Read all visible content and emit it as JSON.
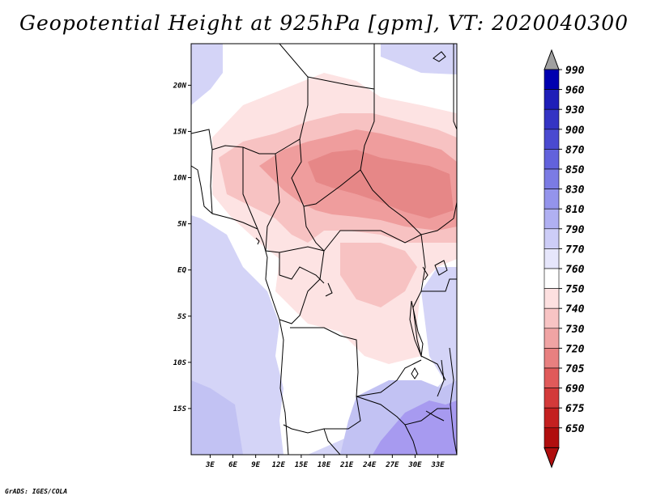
{
  "title": "Geopotential Height at 925hPa [gpm], VT: 2020040300",
  "credit": "GrADS: IGES/COLA",
  "map": {
    "lat_labels": [
      "20N",
      "15N",
      "10N",
      "5N",
      "EQ",
      "5S",
      "10S",
      "15S"
    ],
    "lat_values": [
      20,
      15,
      10,
      5,
      0,
      -5,
      -10,
      -15
    ],
    "lon_labels": [
      "3E",
      "6E",
      "9E",
      "12E",
      "15E",
      "18E",
      "21E",
      "24E",
      "27E",
      "30E",
      "33E"
    ],
    "lon_values": [
      3,
      6,
      9,
      12,
      15,
      18,
      21,
      24,
      27,
      30,
      33
    ],
    "lon_range": [
      0.5,
      35.5
    ],
    "lat_range": [
      -20,
      24.5
    ],
    "fill_colors": {
      "ocean": "#d4d4f7",
      "south_ocean": "#c2c2f3",
      "low_purple": "#a79af0",
      "white": "#ffffff",
      "pink_light": "#fde3e3",
      "pink_mid": "#f7c2c2",
      "pink_deep": "#ef9d9d",
      "pink_core": "#e68787"
    }
  },
  "colorbar": {
    "levels": [
      "990",
      "960",
      "930",
      "900",
      "870",
      "850",
      "830",
      "810",
      "790",
      "770",
      "760",
      "750",
      "740",
      "730",
      "720",
      "705",
      "690",
      "675",
      "650"
    ],
    "colors": [
      "#0000b0",
      "#1e1eb8",
      "#3434c4",
      "#4a4ad0",
      "#6262dc",
      "#7b7be4",
      "#9494ec",
      "#b0b0f2",
      "#cdcdf7",
      "#e6e6fb",
      "#ffffff",
      "#fde0e0",
      "#f8c4c4",
      "#f0a4a4",
      "#e88080",
      "#e05a5a",
      "#d33a3a",
      "#c42020",
      "#b00e0e"
    ],
    "top_arrow_color": "#a0a0a0",
    "bottom_arrow_color": "#b00e0e"
  }
}
